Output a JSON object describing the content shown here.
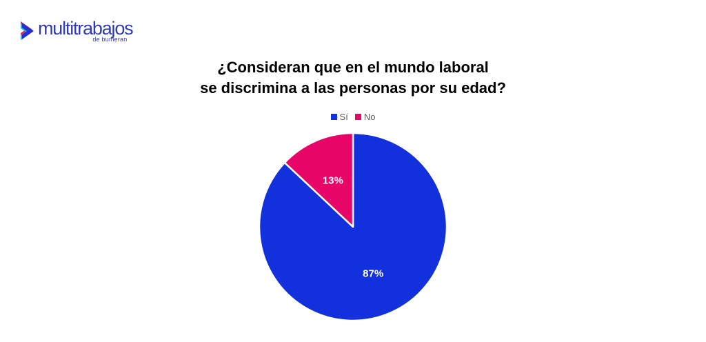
{
  "brand": {
    "logo_text": "multitrabajos",
    "logo_subtext": "de bumeran",
    "wordmark_color": "#2F3AB8",
    "chevron_colors": {
      "pink": "#E8255C",
      "teal": "#27B6C9",
      "blue": "#2430CF"
    }
  },
  "chart_data": {
    "type": "pie",
    "title": "¿Consideran que en el mundo laboral\nse discrimina a las personas por su edad?",
    "series": [
      {
        "label": "Sí",
        "value": 87,
        "color": "#1230DC"
      },
      {
        "label": "No",
        "value": 13,
        "color": "#E80568"
      }
    ],
    "start_angle_deg": 0,
    "direction": "clockwise",
    "legend_position": "top",
    "slice_border_color": "#FFFFFF",
    "data_label_color": "#FFFFFF",
    "data_label_format": "percent",
    "legend_text_color": "#58595b",
    "background": "#FFFFFF"
  }
}
